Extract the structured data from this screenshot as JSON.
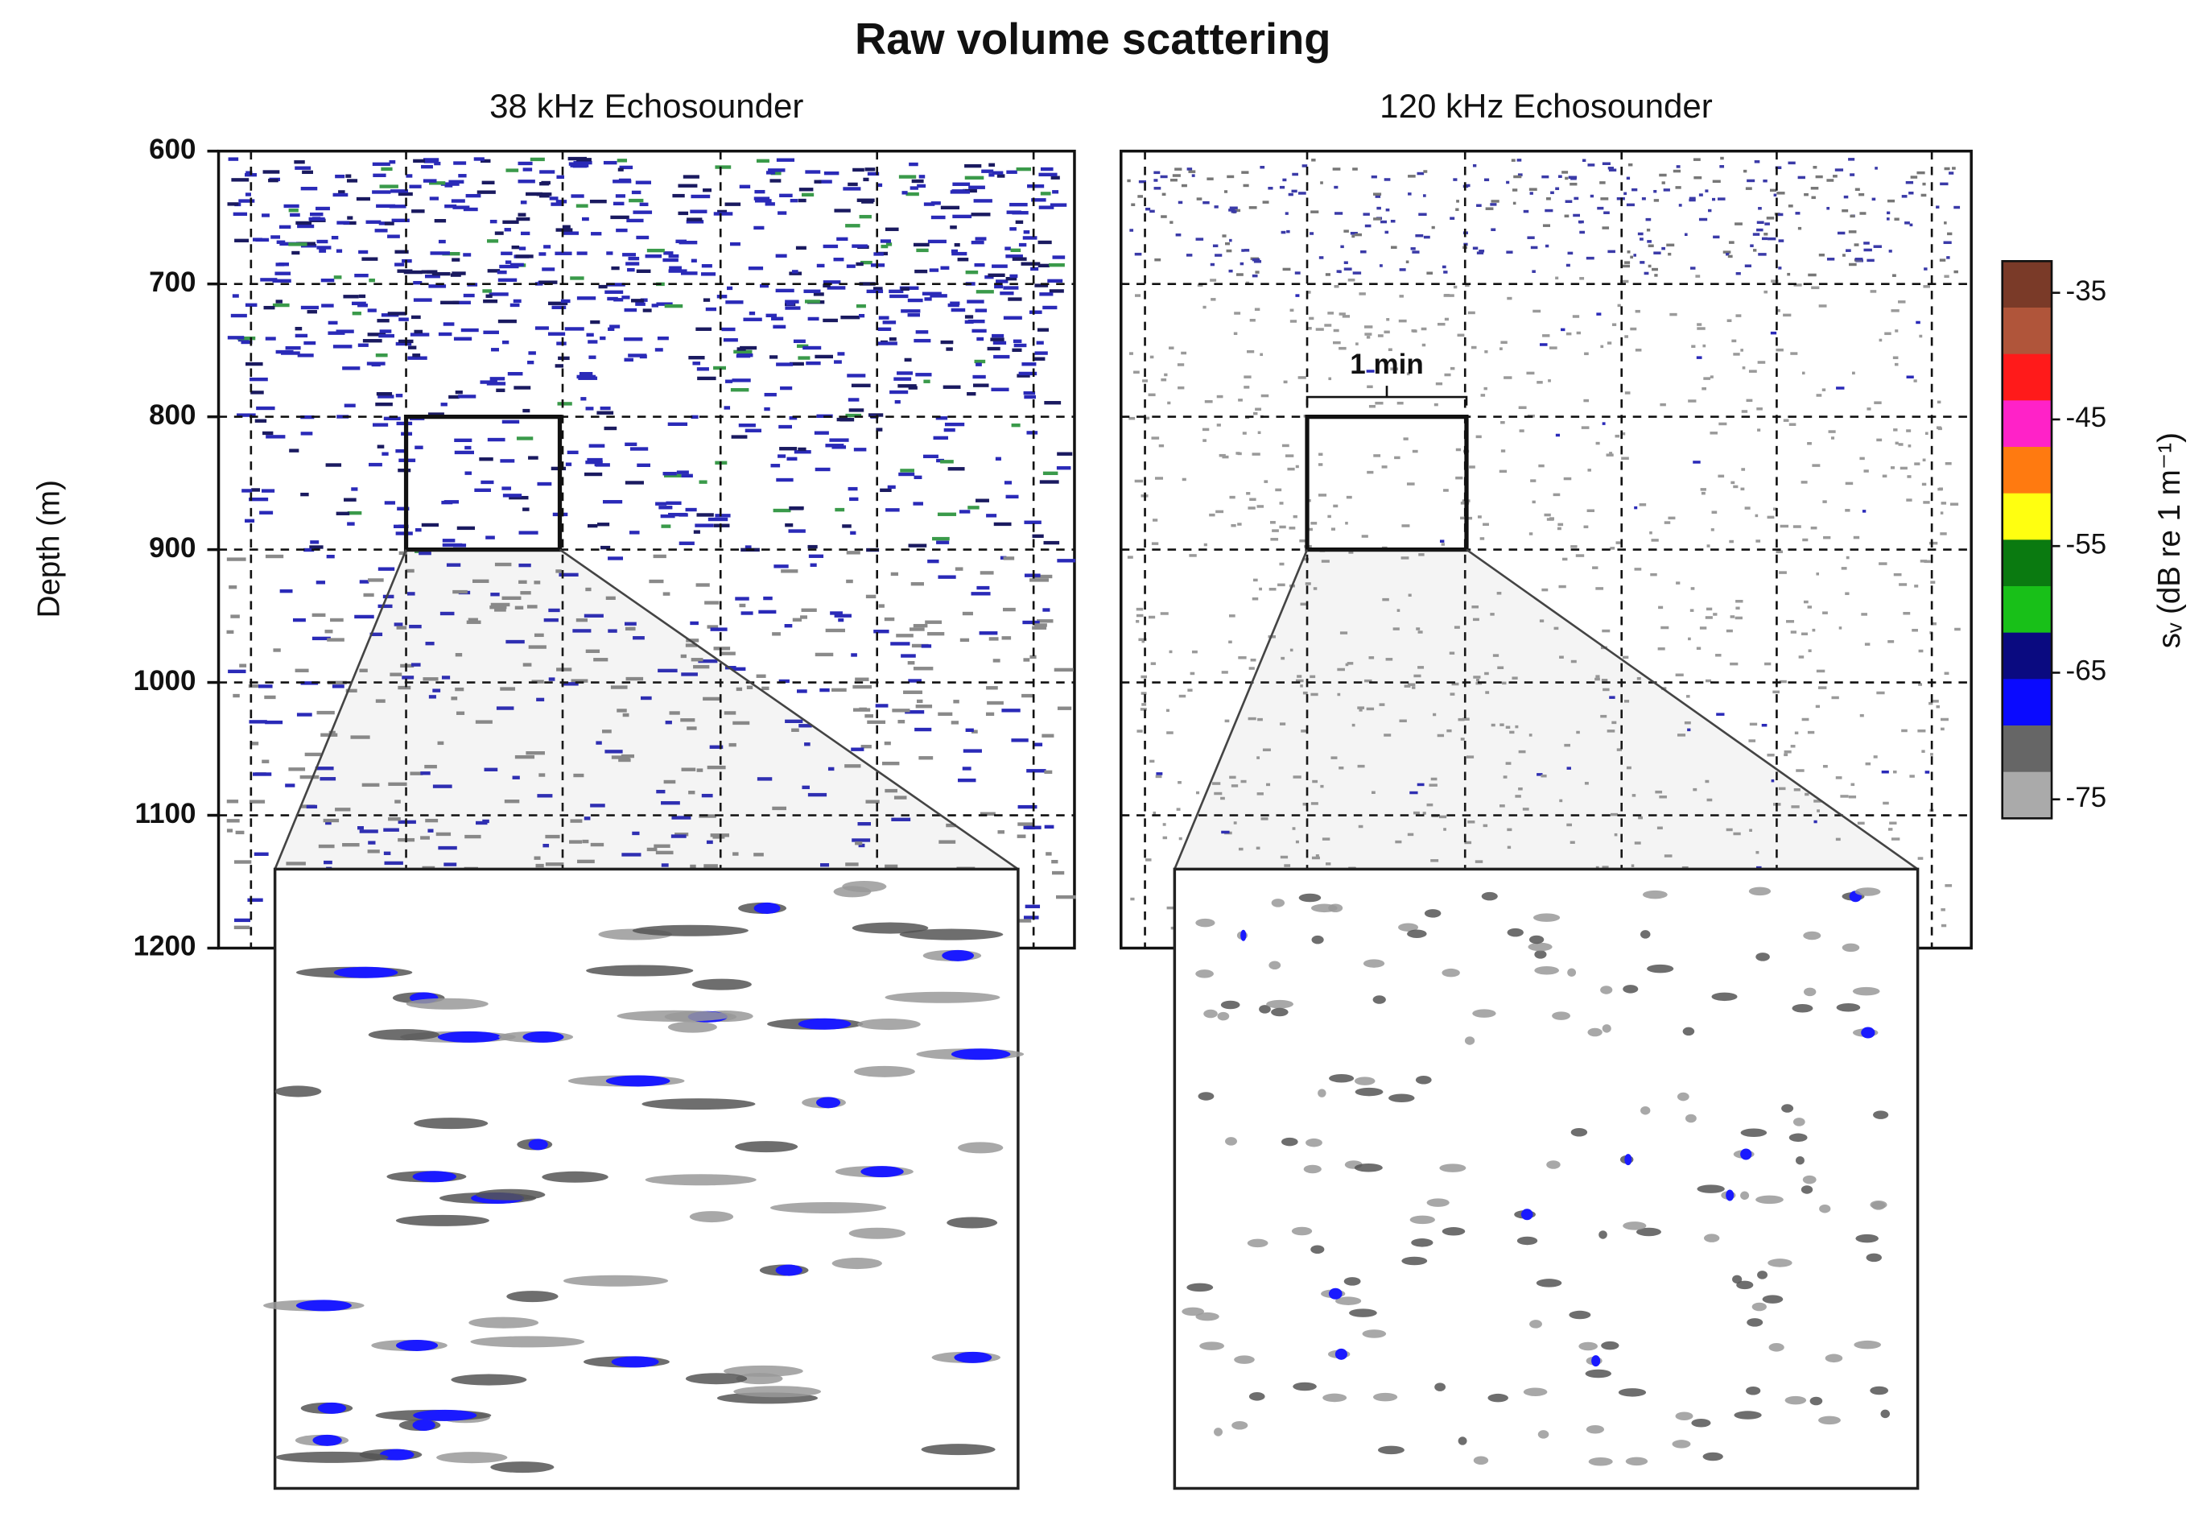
{
  "chart_data": {
    "type": "echogram",
    "title": "Raw volume scattering",
    "ylabel": "Depth (m)",
    "annotation": "1 min",
    "panels": [
      {
        "title": "38 kHz Echosounder",
        "ylim": [
          600,
          1200
        ],
        "yticks": [
          600,
          700,
          800,
          900,
          1000,
          1100,
          1200
        ],
        "zoom_ylim": [
          800,
          900
        ]
      },
      {
        "title": "120 kHz Echosounder",
        "ylim": [
          600,
          1200
        ],
        "yticks": [
          600,
          700,
          800,
          900,
          1000,
          1100,
          1200
        ],
        "zoom_ylim": [
          800,
          900
        ]
      }
    ],
    "colorbar": {
      "label": "sᵥ (dB re 1 m⁻¹)",
      "lim": [
        -32.5,
        -76.5
      ],
      "ticks": [
        -35,
        -45,
        -55,
        -65,
        -75
      ],
      "colors": [
        "#7a3a28",
        "#b0553a",
        "#ff1a1a",
        "#ff22c8",
        "#ff7a10",
        "#ffff10",
        "#0a7a10",
        "#18c018",
        "#0a0a80",
        "#0a0aff",
        "#666666",
        "#aaaaaa"
      ]
    },
    "grid": true
  }
}
